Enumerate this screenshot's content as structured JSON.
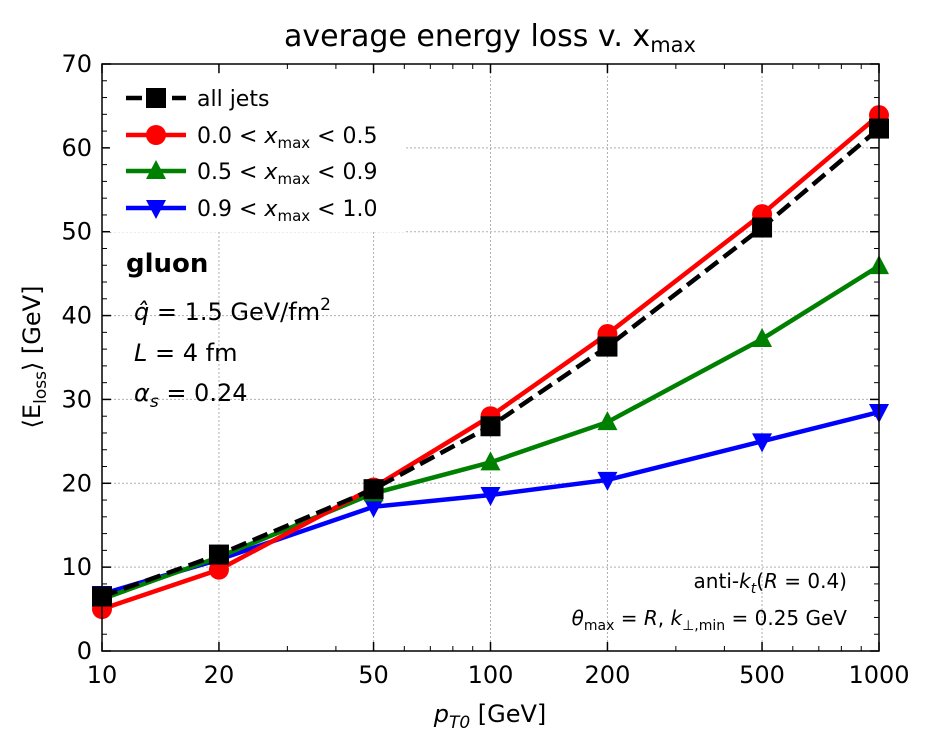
{
  "chart_data": {
    "type": "line",
    "title": "average energy loss v. x",
    "title_sub": "max",
    "xlabel": "p",
    "xlabel_sub": "T0",
    "xlabel_unit": " [GeV]",
    "ylabel_open": "⟨E",
    "ylabel_sub": "loss",
    "ylabel_close": "⟩ [GeV]",
    "x_scale": "log",
    "xlim": [
      10,
      1000
    ],
    "ylim": [
      0,
      70
    ],
    "x_ticks": [
      10,
      20,
      50,
      100,
      200,
      500,
      1000
    ],
    "x_tick_labels": [
      "10",
      "20",
      "50",
      "100",
      "200",
      "500",
      "1000"
    ],
    "y_ticks": [
      0,
      10,
      20,
      30,
      40,
      50,
      60,
      70
    ],
    "y_tick_labels": [
      "0",
      "10",
      "20",
      "30",
      "40",
      "50",
      "60",
      "70"
    ],
    "grid": true,
    "legend_position": "top-left",
    "x": [
      10,
      20,
      50,
      100,
      200,
      500,
      1000
    ],
    "series": [
      {
        "name": "all jets",
        "label_parts": [
          "all jets"
        ],
        "color": "#000000",
        "marker": "square",
        "linestyle": "dashed",
        "values": [
          6.5,
          11.5,
          19.3,
          26.8,
          36.3,
          50.5,
          62.3
        ]
      },
      {
        "name": "0.0 < x_max < 0.5",
        "label_parts": [
          "0.0 < ",
          "x",
          "max",
          " < 0.5"
        ],
        "color": "#ff0000",
        "marker": "circle",
        "linestyle": "solid",
        "values": [
          5.0,
          9.7,
          19.5,
          28.0,
          37.8,
          52.1,
          63.9
        ]
      },
      {
        "name": "0.5 < x_max < 0.9",
        "label_parts": [
          "0.5 < ",
          "x",
          "max",
          " < 0.9"
        ],
        "color": "#008000",
        "marker": "triangle-up",
        "linestyle": "solid",
        "values": [
          6.2,
          11.2,
          18.8,
          22.5,
          27.3,
          37.2,
          45.9
        ]
      },
      {
        "name": "0.9 < x_max < 1.0",
        "label_parts": [
          "0.9 < ",
          "x",
          "max",
          " < 1.0"
        ],
        "color": "#0000ff",
        "marker": "triangle-down",
        "linestyle": "solid",
        "values": [
          6.8,
          10.9,
          17.2,
          18.6,
          20.4,
          25.0,
          28.5
        ]
      }
    ],
    "annotations": {
      "gluon": "gluon",
      "qhat_sym": "q̂",
      "qhat_val": " = 1.5 GeV/fm",
      "qhat_sup": "2",
      "L_sym": "L",
      "L_val": " = 4 fm",
      "alpha_sym": "α",
      "alpha_sub": "s",
      "alpha_val": " = 0.24",
      "algo_pre": "anti-",
      "algo_k": "k",
      "algo_ksub": "t",
      "algo_open": "(",
      "algo_R": "R",
      "algo_val": " = 0.4)",
      "theta_sym": "θ",
      "theta_sub": "max",
      "theta_eq": " = ",
      "theta_R": "R",
      "theta_comma": ", ",
      "kperp_sym": "k",
      "kperp_sub": "⊥,min",
      "kperp_val": " = 0.25 GeV"
    }
  }
}
